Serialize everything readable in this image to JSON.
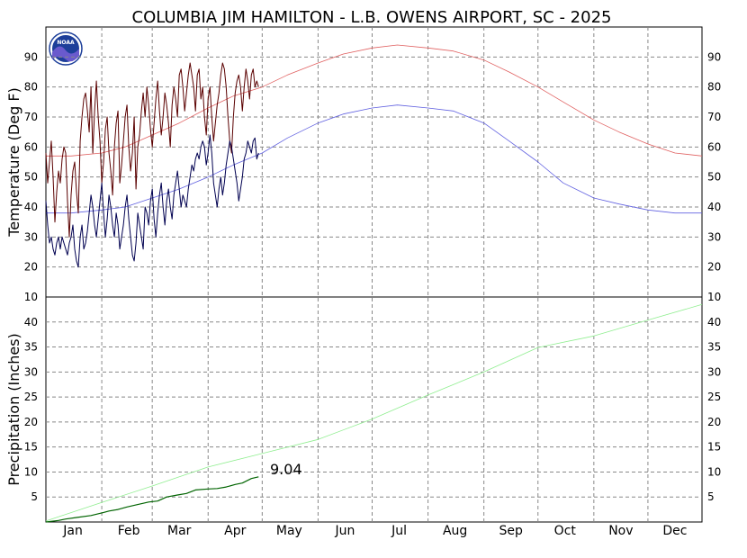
{
  "chart_data": [
    {
      "type": "line",
      "title": "COLUMBIA JIM HAMILTON - L.B. OWENS AIRPORT, SC - 2025",
      "ylabel": "Temperature (Deg F)",
      "xlabel": "",
      "months": [
        "Jan",
        "Feb",
        "Mar",
        "Apr",
        "May",
        "Jun",
        "Jul",
        "Aug",
        "Sep",
        "Oct",
        "Nov",
        "Dec"
      ],
      "ylim": [
        10,
        100
      ],
      "yticks": [
        20,
        30,
        40,
        50,
        60,
        70,
        80,
        90
      ],
      "ytick_bottom": 10,
      "grid": true,
      "series": [
        {
          "role": "normal-high",
          "color": "#e06060",
          "x": [
            1,
            15,
            32,
            45,
            60,
            75,
            91,
            105,
            121,
            135,
            152,
            166,
            182,
            196,
            213,
            227,
            244,
            258,
            274,
            288,
            305,
            319,
            335,
            350,
            365
          ],
          "y": [
            57,
            57,
            58,
            60,
            64,
            68,
            73,
            77,
            80,
            84,
            88,
            91,
            93,
            94,
            93,
            92,
            89,
            85,
            80,
            75,
            69,
            65,
            61,
            58,
            57
          ]
        },
        {
          "role": "normal-low",
          "color": "#6060e0",
          "x": [
            1,
            15,
            32,
            45,
            60,
            75,
            91,
            105,
            121,
            135,
            152,
            166,
            182,
            196,
            213,
            227,
            244,
            258,
            274,
            288,
            305,
            319,
            335,
            350,
            365
          ],
          "y": [
            38,
            38,
            39,
            40,
            43,
            46,
            50,
            54,
            58,
            63,
            68,
            71,
            73,
            74,
            73,
            72,
            68,
            62,
            55,
            48,
            43,
            41,
            39,
            38,
            38
          ]
        },
        {
          "role": "daily-high",
          "color": "#5a0000",
          "x": [
            1,
            2,
            3,
            4,
            5,
            6,
            7,
            8,
            9,
            10,
            11,
            12,
            13,
            14,
            15,
            16,
            17,
            18,
            19,
            20,
            21,
            22,
            23,
            24,
            25,
            26,
            27,
            28,
            29,
            30,
            31,
            32,
            33,
            34,
            35,
            36,
            37,
            38,
            39,
            40,
            41,
            42,
            43,
            44,
            45,
            46,
            47,
            48,
            49,
            50,
            51,
            52,
            53,
            54,
            55,
            56,
            57,
            58,
            59,
            60,
            61,
            62,
            63,
            64,
            65,
            66,
            67,
            68,
            69,
            70,
            71,
            72,
            73,
            74,
            75,
            76,
            77,
            78,
            79,
            80,
            81,
            82,
            83,
            84,
            85,
            86,
            87,
            88,
            89,
            90,
            91,
            92,
            93,
            94,
            95,
            96,
            97,
            98,
            99,
            100,
            101,
            102,
            103,
            104,
            105,
            106,
            107,
            108,
            109,
            110,
            111,
            112,
            113,
            114,
            115,
            116,
            117,
            118,
            119
          ],
          "y": [
            58,
            48,
            55,
            62,
            50,
            35,
            45,
            52,
            48,
            56,
            60,
            58,
            42,
            30,
            44,
            52,
            55,
            45,
            38,
            62,
            70,
            76,
            78,
            72,
            65,
            80,
            58,
            72,
            82,
            70,
            62,
            48,
            55,
            66,
            70,
            58,
            52,
            44,
            60,
            68,
            72,
            48,
            54,
            62,
            70,
            74,
            60,
            52,
            58,
            70,
            46,
            60,
            64,
            72,
            78,
            70,
            80,
            74,
            66,
            60,
            68,
            76,
            82,
            72,
            64,
            70,
            78,
            74,
            68,
            60,
            74,
            80,
            76,
            70,
            84,
            86,
            80,
            72,
            78,
            84,
            88,
            84,
            80,
            72,
            84,
            86,
            76,
            80,
            70,
            64,
            76,
            80,
            70,
            62,
            68,
            74,
            78,
            84,
            88,
            86,
            80,
            70,
            62,
            58,
            70,
            78,
            82,
            84,
            80,
            72,
            80,
            86,
            82,
            76,
            84,
            86,
            80,
            82,
            80
          ],
          "partial": "Jan 1 - Apr 29 (values estimated)"
        },
        {
          "role": "daily-low",
          "color": "#000050",
          "x": [
            1,
            2,
            3,
            4,
            5,
            6,
            7,
            8,
            9,
            10,
            11,
            12,
            13,
            14,
            15,
            16,
            17,
            18,
            19,
            20,
            21,
            22,
            23,
            24,
            25,
            26,
            27,
            28,
            29,
            30,
            31,
            32,
            33,
            34,
            35,
            36,
            37,
            38,
            39,
            40,
            41,
            42,
            43,
            44,
            45,
            46,
            47,
            48,
            49,
            50,
            51,
            52,
            53,
            54,
            55,
            56,
            57,
            58,
            59,
            60,
            61,
            62,
            63,
            64,
            65,
            66,
            67,
            68,
            69,
            70,
            71,
            72,
            73,
            74,
            75,
            76,
            77,
            78,
            79,
            80,
            81,
            82,
            83,
            84,
            85,
            86,
            87,
            88,
            89,
            90,
            91,
            92,
            93,
            94,
            95,
            96,
            97,
            98,
            99,
            100,
            101,
            102,
            103,
            104,
            105,
            106,
            107,
            108,
            109,
            110,
            111,
            112,
            113,
            114,
            115,
            116,
            117,
            118,
            119
          ],
          "y": [
            42,
            34,
            28,
            30,
            26,
            24,
            28,
            30,
            26,
            30,
            28,
            26,
            24,
            28,
            30,
            34,
            26,
            22,
            20,
            30,
            34,
            26,
            28,
            32,
            38,
            44,
            40,
            34,
            30,
            36,
            42,
            48,
            38,
            30,
            36,
            44,
            40,
            34,
            30,
            38,
            34,
            26,
            30,
            34,
            40,
            44,
            36,
            30,
            24,
            22,
            28,
            38,
            34,
            30,
            26,
            40,
            38,
            34,
            42,
            46,
            36,
            30,
            38,
            44,
            48,
            40,
            34,
            42,
            46,
            40,
            36,
            44,
            48,
            52,
            46,
            40,
            44,
            42,
            40,
            46,
            50,
            54,
            52,
            56,
            58,
            56,
            60,
            62,
            60,
            54,
            58,
            64,
            58,
            48,
            44,
            40,
            46,
            50,
            44,
            48,
            54,
            58,
            62,
            60,
            56,
            52,
            48,
            42,
            46,
            50,
            56,
            58,
            62,
            60,
            58,
            62,
            63,
            56,
            58
          ],
          "partial": "Jan 1 - Apr 29 (values estimated)"
        }
      ]
    },
    {
      "type": "line",
      "ylabel": "Precipitation (Inches)",
      "xlabel": "",
      "ylim": [
        0,
        45
      ],
      "yticks": [
        5,
        10,
        15,
        20,
        25,
        30,
        35,
        40
      ],
      "grid": true,
      "annotation": "9.04",
      "series": [
        {
          "role": "normal-cumulative",
          "color": "#90ee90",
          "x": [
            1,
            32,
            60,
            91,
            121,
            152,
            182,
            213,
            244,
            274,
            305,
            335,
            365
          ],
          "y": [
            0.2,
            3.9,
            7.2,
            11.0,
            13.7,
            16.5,
            20.6,
            25.4,
            30.0,
            34.9,
            37.2,
            40.4,
            43.5
          ]
        },
        {
          "role": "observed-cumulative",
          "color": "#006400",
          "x": [
            1,
            8,
            12,
            18,
            26,
            33,
            36,
            41,
            46,
            52,
            58,
            63,
            68,
            74,
            79,
            84,
            91,
            96,
            101,
            106,
            110,
            115,
            119
          ],
          "y": [
            0.0,
            0.3,
            0.6,
            0.9,
            1.3,
            1.9,
            2.2,
            2.5,
            3.0,
            3.5,
            4.0,
            4.2,
            5.0,
            5.4,
            5.7,
            6.4,
            6.6,
            6.7,
            7.0,
            7.5,
            7.8,
            8.7,
            9.04
          ],
          "partial": "Jan 1 - Apr 29"
        }
      ]
    }
  ],
  "logo": {
    "text": "NOAA",
    "color": "#1d3f9a",
    "accent": "#6a5acd"
  }
}
